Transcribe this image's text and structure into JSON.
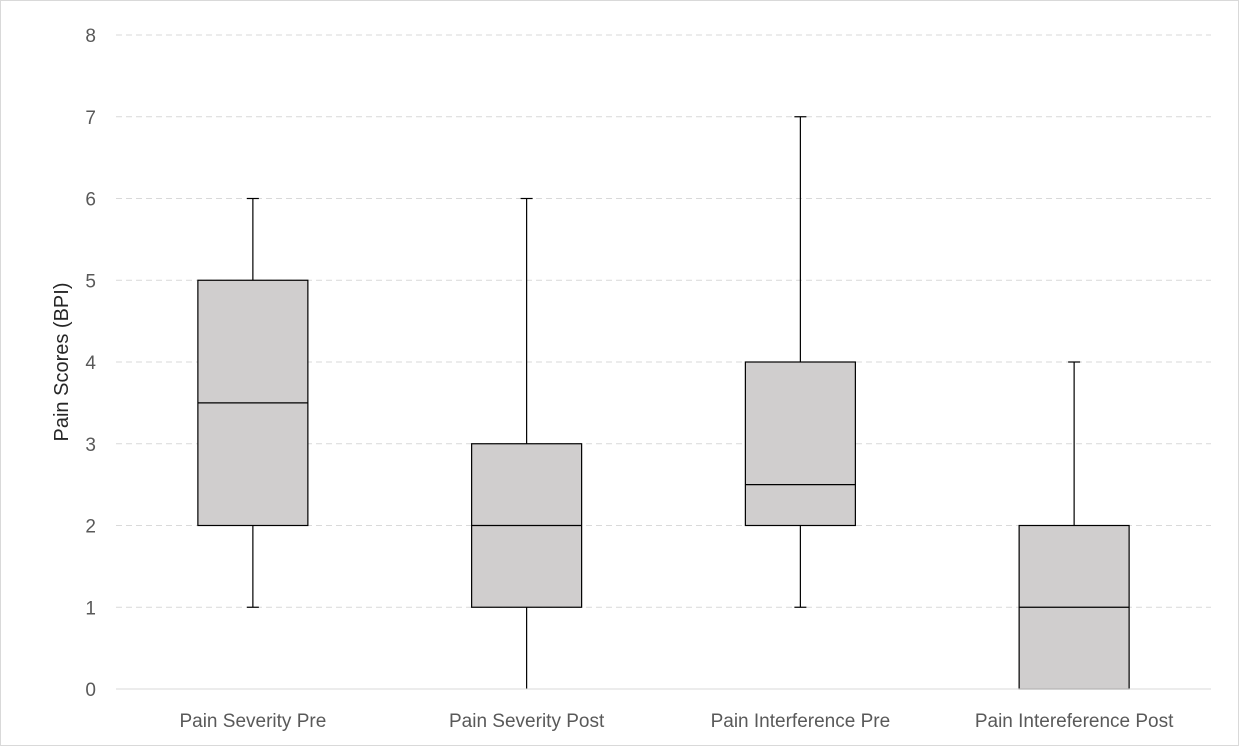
{
  "chart_data": {
    "type": "boxplot",
    "title": "",
    "xlabel": "",
    "ylabel": "Pain Scores (BPI)",
    "ylim": [
      0,
      8
    ],
    "yticks": [
      0,
      1,
      2,
      3,
      4,
      5,
      6,
      7,
      8
    ],
    "grid": "horizontal-dashed",
    "legend": "none",
    "categories": [
      "Pain Severity Pre",
      "Pain Severity Post",
      "Pain Interference Pre",
      "Pain Intereference Post"
    ],
    "boxes": [
      {
        "min": 1,
        "q1": 2,
        "median": 3.5,
        "q3": 5,
        "max": 6
      },
      {
        "min": 0,
        "q1": 1,
        "median": 2,
        "q3": 3,
        "max": 6
      },
      {
        "min": 1,
        "q1": 2,
        "median": 2.5,
        "q3": 4,
        "max": 7
      },
      {
        "min": 0,
        "q1": 0,
        "median": 1,
        "q3": 2,
        "max": 4
      }
    ],
    "colors": {
      "box_fill": "#d0cece",
      "box_stroke": "#000000",
      "gridline": "#d9d9d9",
      "axis_line": "#d9d9d9",
      "tick_text": "#595959",
      "axis_title_text": "#262626"
    }
  }
}
